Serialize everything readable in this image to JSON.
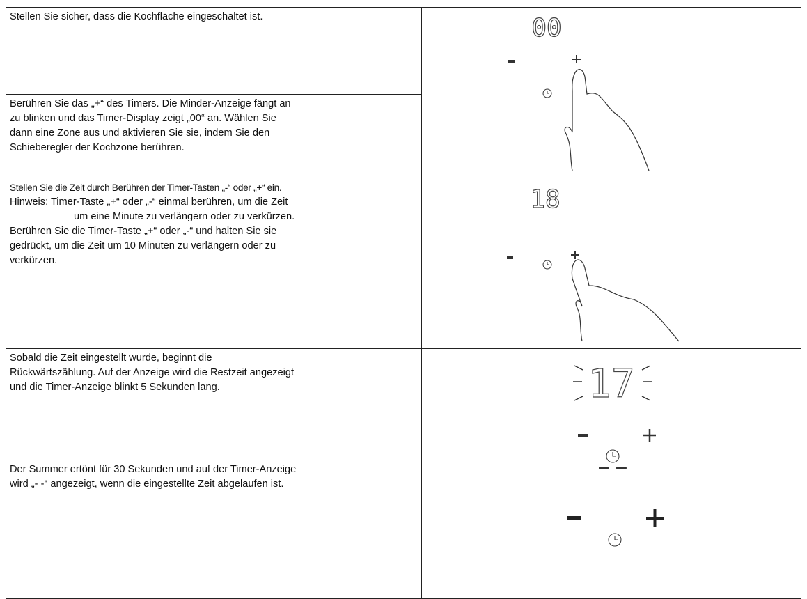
{
  "rows": [
    {
      "cells": [
        [
          "Stellen Sie sicher, dass die Kochfläche eingeschaltet ist."
        ],
        [
          "Berühren Sie das „+“ des Timers. Die Minder-Anzeige fängt an",
          "zu blinken und das Timer-Display zeigt „00“ an. Wählen Sie",
          "dann eine Zone aus und aktivieren Sie sie, indem Sie den",
          "Schieberegler der Kochzone berühren."
        ]
      ],
      "display": "00"
    },
    {
      "cells": [
        [
          "Stellen Sie die Zeit durch Berühren der Timer-Tasten „-“ oder „+“ ein.",
          "Hinweis: Timer-Taste „+“ oder „-“ einmal berühren, um die Zeit",
          "um eine Minute zu verlängern oder zu verkürzen.",
          "Berühren Sie die Timer-Taste „+“ oder „-“ und halten Sie sie",
          "gedrückt, um die Zeit um 10 Minuten zu verlängern oder zu",
          "verkürzen."
        ]
      ],
      "display": "18"
    },
    {
      "cells": [
        [
          "Sobald die Zeit eingestellt wurde, beginnt die",
          "Rückwärtszählung. Auf der Anzeige wird die Restzeit angezeigt",
          "und die Timer-Anzeige blinkt 5 Sekunden lang."
        ]
      ],
      "display": "17"
    },
    {
      "cells": [
        [
          "Der Summer ertönt für 30 Sekunden und auf der Timer-Anzeige",
          "wird „- -“ angezeigt, wenn die eingestellte Zeit abgelaufen ist."
        ]
      ],
      "display": "– –"
    }
  ]
}
